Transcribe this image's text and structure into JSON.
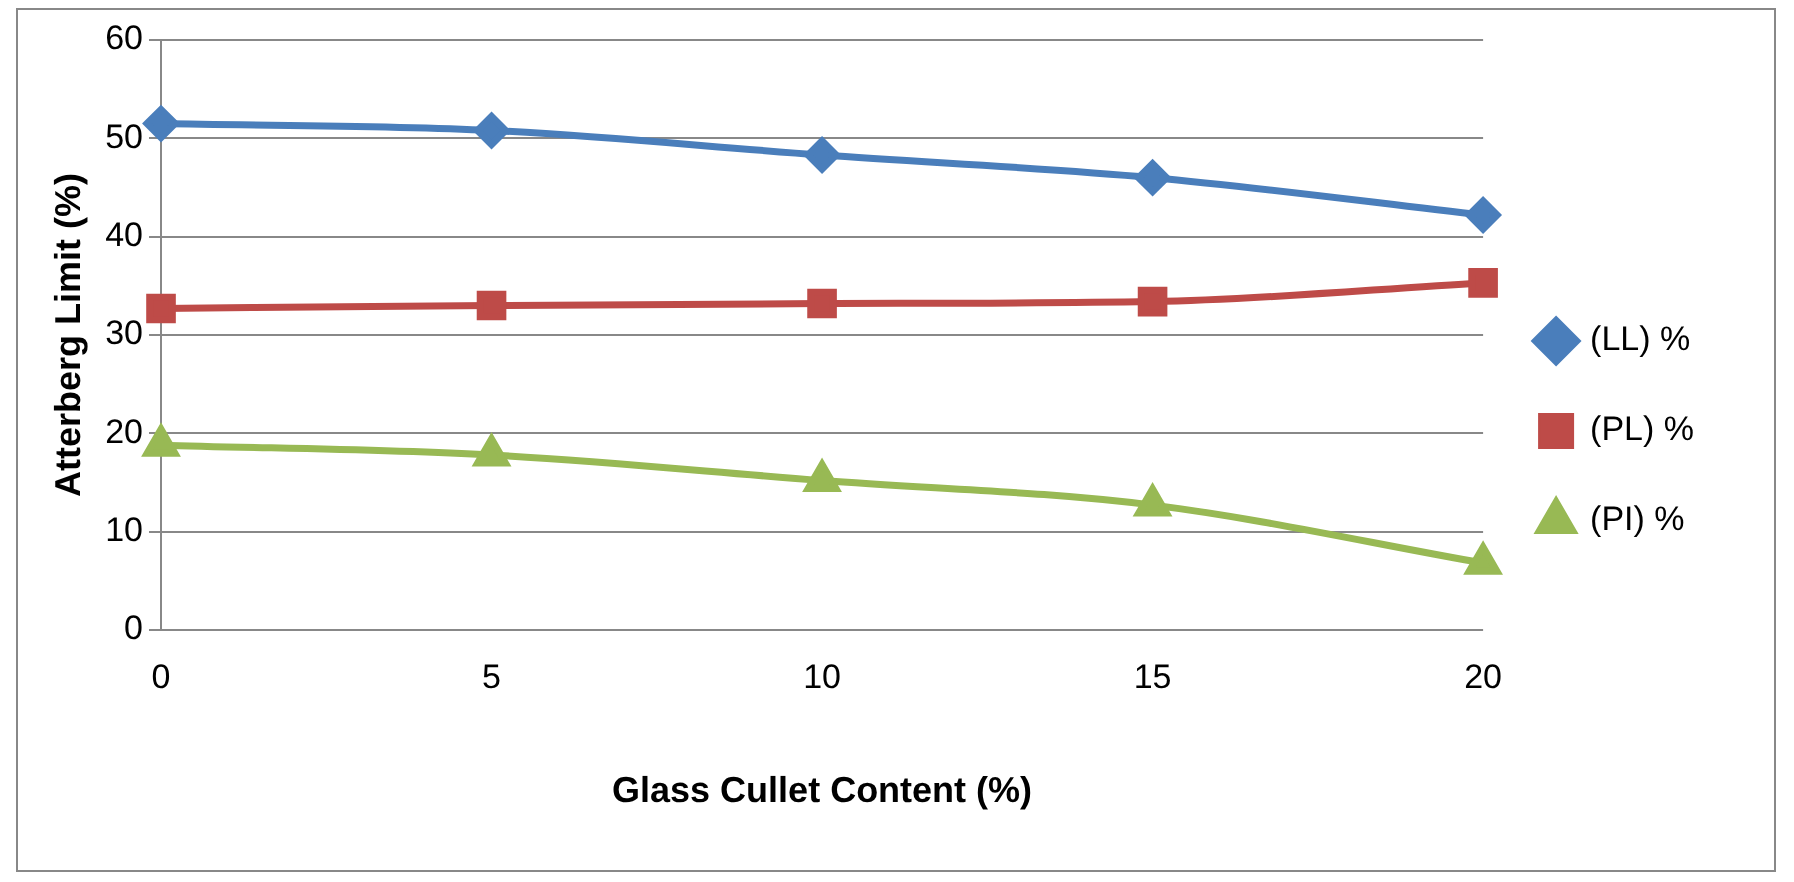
{
  "chart_data": {
    "type": "line",
    "xlabel": "Glass Cullet Content (%)",
    "ylabel": "Atterberg Limit (%)",
    "categories": [
      "0",
      "5",
      "10",
      "15",
      "20"
    ],
    "ylim": [
      0,
      60
    ],
    "yticks": [
      0,
      10,
      20,
      30,
      40,
      50,
      60
    ],
    "series": [
      {
        "name": "(LL) %",
        "color": "#4a7ebb",
        "marker": "diamond",
        "values": [
          51.5,
          50.8,
          48.3,
          46,
          42.2
        ]
      },
      {
        "name": "(PL) %",
        "color": "#be4b48",
        "marker": "square",
        "values": [
          32.7,
          33,
          33.2,
          33.4,
          35.3
        ]
      },
      {
        "name": "(PI) %",
        "color": "#98b954",
        "marker": "triangle",
        "values": [
          18.8,
          17.8,
          15.2,
          12.7,
          6.8
        ]
      }
    ],
    "grid": "y",
    "legend": "right",
    "line_style": "solid"
  }
}
